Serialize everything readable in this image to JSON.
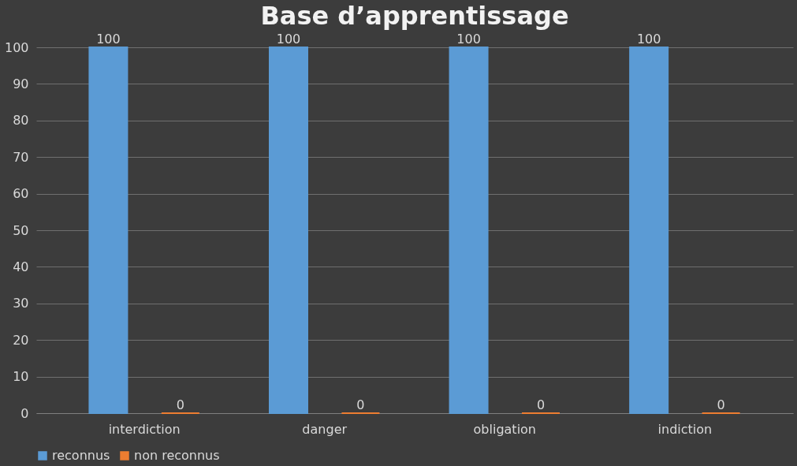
{
  "chart_data": {
    "type": "bar",
    "title": "Base d’apprentissage",
    "categories": [
      "interdiction",
      "danger",
      "obligation",
      "indiction"
    ],
    "series": [
      {
        "name": "reconnus",
        "color": "#5b9bd5",
        "values": [
          100,
          100,
          100,
          100
        ]
      },
      {
        "name": "non reconnus",
        "color": "#ed7d31",
        "values": [
          0,
          0,
          0,
          0
        ]
      }
    ],
    "ylim": [
      0,
      100
    ],
    "yticks": [
      0,
      10,
      20,
      30,
      40,
      50,
      60,
      70,
      80,
      90,
      100
    ],
    "grid": "y",
    "legend": "bottom",
    "data_labels": true
  }
}
